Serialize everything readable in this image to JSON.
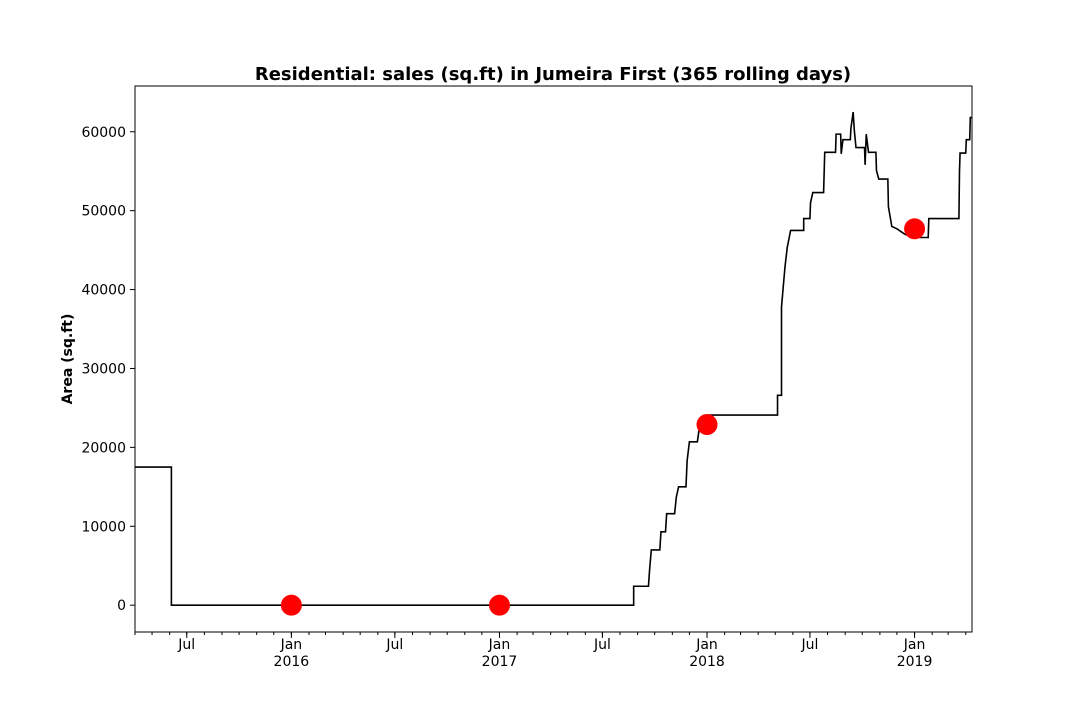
{
  "chart_data": {
    "type": "line",
    "title": "Residential: sales (sq.ft) in Jumeira First (365 rolling days)",
    "xlabel": "",
    "ylabel": "Area (sq.ft)",
    "xlim": [
      "2015-04-01",
      "2019-04-12"
    ],
    "ylim": [
      -3400,
      65800
    ],
    "y_ticks": [
      0,
      10000,
      20000,
      30000,
      40000,
      50000,
      60000
    ],
    "x_ticks": [
      {
        "date": "2015-07-01",
        "label": "Jul",
        "sublabel": ""
      },
      {
        "date": "2016-01-01",
        "label": "Jan",
        "sublabel": "2016"
      },
      {
        "date": "2016-07-01",
        "label": "Jul",
        "sublabel": ""
      },
      {
        "date": "2017-01-01",
        "label": "Jan",
        "sublabel": "2017"
      },
      {
        "date": "2017-07-01",
        "label": "Jul",
        "sublabel": ""
      },
      {
        "date": "2018-01-01",
        "label": "Jan",
        "sublabel": "2018"
      },
      {
        "date": "2018-07-01",
        "label": "Jul",
        "sublabel": ""
      },
      {
        "date": "2019-01-01",
        "label": "Jan",
        "sublabel": "2019"
      }
    ],
    "grid": false,
    "series": [
      {
        "color": "#000000",
        "style": "step",
        "points": [
          [
            "2015-04-01",
            17500
          ],
          [
            "2015-06-04",
            17500
          ],
          [
            "2015-06-04",
            0
          ],
          [
            "2017-08-25",
            0
          ],
          [
            "2017-08-25",
            2400
          ],
          [
            "2017-09-20",
            2400
          ],
          [
            "2017-09-22",
            4500
          ],
          [
            "2017-09-25",
            7000
          ],
          [
            "2017-10-10",
            7000
          ],
          [
            "2017-10-12",
            9300
          ],
          [
            "2017-10-20",
            9300
          ],
          [
            "2017-10-22",
            11600
          ],
          [
            "2017-11-05",
            11600
          ],
          [
            "2017-11-08",
            13700
          ],
          [
            "2017-11-12",
            15000
          ],
          [
            "2017-11-25",
            15000
          ],
          [
            "2017-11-27",
            18300
          ],
          [
            "2017-12-01",
            20700
          ],
          [
            "2017-12-15",
            20700
          ],
          [
            "2017-12-20",
            23200
          ],
          [
            "2018-01-01",
            24100
          ],
          [
            "2018-05-05",
            24100
          ],
          [
            "2018-05-05",
            26600
          ],
          [
            "2018-05-12",
            26600
          ],
          [
            "2018-05-12",
            37800
          ],
          [
            "2018-05-18",
            42800
          ],
          [
            "2018-05-22",
            45300
          ],
          [
            "2018-05-28",
            47500
          ],
          [
            "2018-06-20",
            47500
          ],
          [
            "2018-06-20",
            49000
          ],
          [
            "2018-07-01",
            49000
          ],
          [
            "2018-07-02",
            51000
          ],
          [
            "2018-07-06",
            52300
          ],
          [
            "2018-07-25",
            52300
          ],
          [
            "2018-07-27",
            57400
          ],
          [
            "2018-08-15",
            57400
          ],
          [
            "2018-08-16",
            59700
          ],
          [
            "2018-08-24",
            59700
          ],
          [
            "2018-08-25",
            57200
          ],
          [
            "2018-08-28",
            59000
          ],
          [
            "2018-09-10",
            59000
          ],
          [
            "2018-09-11",
            60400
          ],
          [
            "2018-09-15",
            62500
          ],
          [
            "2018-09-17",
            60200
          ],
          [
            "2018-09-20",
            58000
          ],
          [
            "2018-10-05",
            58000
          ],
          [
            "2018-10-06",
            55800
          ],
          [
            "2018-10-08",
            59700
          ],
          [
            "2018-10-12",
            57400
          ],
          [
            "2018-10-25",
            57400
          ],
          [
            "2018-10-26",
            55100
          ],
          [
            "2018-10-30",
            54000
          ],
          [
            "2018-11-15",
            54000
          ],
          [
            "2018-11-16",
            50500
          ],
          [
            "2018-11-22",
            48000
          ],
          [
            "2018-12-01",
            47700
          ],
          [
            "2018-12-15",
            47000
          ],
          [
            "2018-12-31",
            46600
          ],
          [
            "2019-01-25",
            46600
          ],
          [
            "2019-01-26",
            49000
          ],
          [
            "2019-03-20",
            49000
          ],
          [
            "2019-03-21",
            55000
          ],
          [
            "2019-03-22",
            57300
          ],
          [
            "2019-04-01",
            57300
          ],
          [
            "2019-04-02",
            59000
          ],
          [
            "2019-04-08",
            59000
          ],
          [
            "2019-04-09",
            61800
          ],
          [
            "2019-04-12",
            61800
          ]
        ]
      }
    ],
    "markers": {
      "color": "#ff0000",
      "points": [
        [
          "2016-01-01",
          0
        ],
        [
          "2017-01-01",
          0
        ],
        [
          "2018-01-01",
          22900
        ],
        [
          "2019-01-01",
          47700
        ]
      ]
    }
  }
}
